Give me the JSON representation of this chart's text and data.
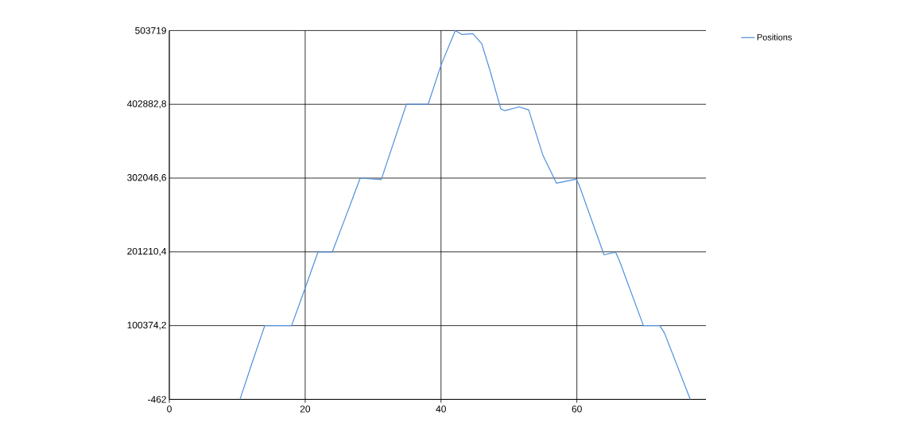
{
  "chart_data": {
    "type": "line",
    "x": [
      10.4,
      12.2,
      14.05,
      18.0,
      20.0,
      21.9,
      24.0,
      26.0,
      28.1,
      31.2,
      33.0,
      34.9,
      38.1,
      40.0,
      42.1,
      43.1,
      44.7,
      46.0,
      47.2,
      48.8,
      49.4,
      51.5,
      52.9,
      55.0,
      57.0,
      59.9,
      60.3,
      64.0,
      65.7,
      66.3,
      69.8,
      72.2,
      72.9,
      76.7
    ],
    "series": [
      {
        "name": "Positions",
        "color": "#4f8fdc",
        "values": [
          -462,
          50000,
          100374,
          100374,
          151900,
          201210,
          201210,
          250000,
          302047,
          300000,
          350000,
          402883,
          402883,
          456500,
          503719,
          498300,
          499400,
          485600,
          449300,
          396700,
          394200,
          399300,
          395300,
          333200,
          295100,
          300600,
          293300,
          197200,
          200800,
          188200,
          100374,
          100374,
          90300,
          -462
        ]
      }
    ],
    "xlim": [
      0,
      79
    ],
    "ylim": [
      -462,
      503719
    ],
    "xticks": [
      0,
      20,
      40,
      60
    ],
    "yticks": [
      -462,
      {
        "value": 100374.2,
        "label": "100374,2"
      },
      {
        "value": 201210.4,
        "label": "201210,4"
      },
      {
        "value": 302046.6,
        "label": "302046,6"
      },
      {
        "value": 402882.8,
        "label": "402882,8"
      },
      503719
    ],
    "grid": true,
    "legend": "top right"
  }
}
